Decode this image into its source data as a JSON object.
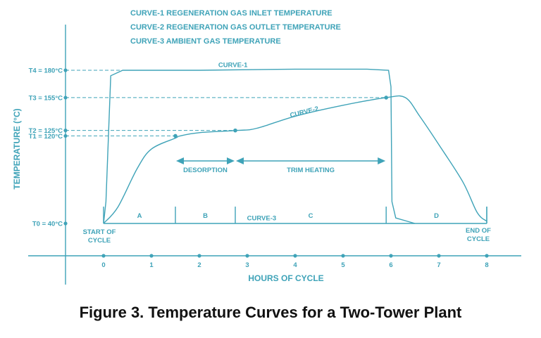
{
  "caption": "Figure 3. Temperature Curves for a Two-Tower Plant",
  "chart_data": {
    "type": "line",
    "title": "",
    "xlabel": "HOURS OF CYCLE",
    "ylabel": "TEMPERATURE (°C)",
    "x_ticks": [
      {
        "value": 0,
        "label": "0"
      },
      {
        "value": 1,
        "label": "1"
      },
      {
        "value": 2,
        "label": "2"
      },
      {
        "value": 3,
        "label": "3"
      },
      {
        "value": 4,
        "label": "4"
      },
      {
        "value": 5,
        "label": "5"
      },
      {
        "value": 6,
        "label": "6"
      },
      {
        "value": 7,
        "label": "7"
      },
      {
        "value": 8,
        "label": "8"
      }
    ],
    "y_ticks": [
      {
        "value": 40,
        "label": "T0 = 40°C"
      },
      {
        "value": 120,
        "label": "T1 = 120°C"
      },
      {
        "value": 125,
        "label": "T2 = 125°C"
      },
      {
        "value": 155,
        "label": "T3 = 155°C"
      },
      {
        "value": 180,
        "label": "T4 = 180°C"
      }
    ],
    "legend": [
      "CURVE-1   REGENERATION GAS INLET TEMPERATURE",
      "CURVE-2   REGENERATION GAS OUTLET TEMPERATURE",
      "CURVE-3   AMBIENT GAS TEMPERATURE"
    ],
    "legend_placement": "top",
    "series": [
      {
        "name": "CURVE-1",
        "points": [
          [
            0,
            40
          ],
          [
            0.05,
            60
          ],
          [
            0.15,
            175
          ],
          [
            0.4,
            180
          ],
          [
            2,
            180
          ],
          [
            4,
            181
          ],
          [
            5,
            181
          ],
          [
            5.5,
            181
          ],
          [
            5.95,
            180
          ],
          [
            6.0,
            165
          ],
          [
            6.02,
            60
          ],
          [
            6.1,
            45
          ],
          [
            6.5,
            40
          ]
        ]
      },
      {
        "name": "CURVE-2",
        "points": [
          [
            0,
            40
          ],
          [
            0.3,
            55
          ],
          [
            0.7,
            90
          ],
          [
            1,
            108
          ],
          [
            1.5,
            118
          ],
          [
            1.6,
            120
          ],
          [
            2,
            123
          ],
          [
            2.8,
            125
          ],
          [
            3.2,
            127
          ],
          [
            4,
            138
          ],
          [
            5,
            148
          ],
          [
            5.9,
            155
          ],
          [
            6.3,
            155
          ],
          [
            6.6,
            138
          ],
          [
            7,
            112
          ],
          [
            7.5,
            78
          ],
          [
            7.8,
            50
          ],
          [
            8,
            42
          ]
        ]
      },
      {
        "name": "CURVE-3",
        "points": [
          [
            0,
            40
          ],
          [
            2,
            40
          ],
          [
            4,
            40
          ],
          [
            6,
            40
          ],
          [
            8,
            40
          ]
        ]
      }
    ],
    "annotations": [
      {
        "text": "CURVE-1",
        "x": 2.7,
        "y": 183
      },
      {
        "text": "CURVE-2",
        "x": 4.2,
        "y": 140
      },
      {
        "text": "CURVE-3",
        "x": 3.3,
        "y": 43
      },
      {
        "text": "DESORPTION",
        "x_start": 1.5,
        "x_end": 2.75,
        "y": 115
      },
      {
        "text": "TRIM HEATING",
        "x_start": 2.75,
        "x_end": 5.9,
        "y": 115
      }
    ],
    "phases": [
      {
        "label": "A",
        "x_start": 0,
        "x_end": 1.5
      },
      {
        "label": "B",
        "x_start": 1.5,
        "x_end": 2.75
      },
      {
        "label": "C",
        "x_start": 2.75,
        "x_end": 5.9
      },
      {
        "label": "D",
        "x_start": 5.9,
        "x_end": 8
      }
    ],
    "start_label": [
      "START OF",
      "CYCLE"
    ],
    "end_label": [
      "END OF",
      "CYCLE"
    ],
    "xlim": [
      -0.8,
      8.6
    ],
    "grid": false
  }
}
